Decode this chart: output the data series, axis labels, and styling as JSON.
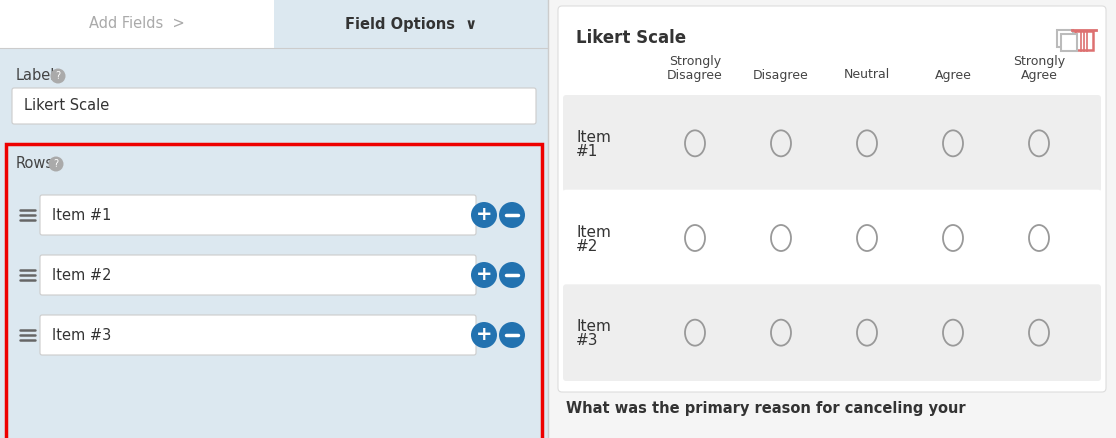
{
  "bg_color": "#f0f4f8",
  "left_panel_bg": "#dce8f0",
  "right_panel_bg": "#f5f5f5",
  "right_inner_bg": "#ffffff",
  "tab_bar_bg": "#ffffff",
  "tab_active_bg": "#dce8f0",
  "tab_inactive_text": "#aaaaaa",
  "tab_active_text": "#333333",
  "tab_add_fields": "Add Fields  >",
  "tab_field_options": "Field Options  ∨",
  "label_text": "Label",
  "label_input": "Likert Scale",
  "rows_label": "Rows",
  "items": [
    "Item #1",
    "Item #2",
    "Item #3"
  ],
  "input_bg": "#ffffff",
  "input_border": "#cccccc",
  "btn_blue": "#2272b0",
  "red_border": "#ee0000",
  "divider_color": "#cccccc",
  "right_title": "Likert Scale",
  "columns": [
    "Strongly\nDisagree",
    "Disagree",
    "Neutral",
    "Agree",
    "Strongly\nAgree"
  ],
  "row_items": [
    "Item\n#1",
    "Item\n#2",
    "Item\n#3"
  ],
  "table_header_text": "#444444",
  "table_row_shaded": "#eeeeee",
  "table_row_white": "#ffffff",
  "circle_color": "#999999",
  "icon_copy_color": "#bbbbbb",
  "icon_trash_color": "#dd7070",
  "bottom_text": "What was the primary reason for canceling your",
  "bottom_text_color": "#333333",
  "help_circle_color": "#aaaaaa"
}
